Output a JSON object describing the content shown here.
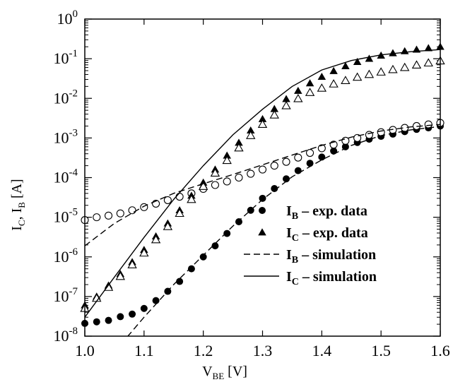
{
  "chart_data": {
    "type": "scatter",
    "xlabel": {
      "main": "V",
      "sub": "BE",
      "unit": " [V]"
    },
    "ylabel": {
      "part1": "I",
      "sub1": "C",
      "sep": ", I",
      "sub2": "B",
      "unit": " [A]"
    },
    "xlim": [
      1.0,
      1.6
    ],
    "ylim": [
      1e-08,
      1
    ],
    "yscale": "log",
    "grid": false,
    "legend_position": "lower-right",
    "x_ticks": [
      1.0,
      1.1,
      1.2,
      1.3,
      1.4,
      1.5,
      1.6
    ],
    "x_tick_labels": [
      "1.0",
      "1.1",
      "1.2",
      "1.3",
      "1.4",
      "1.5",
      "1.6"
    ],
    "y_tick_exponents": [
      "-8",
      "-7",
      "-6",
      "-5",
      "-4",
      "-3",
      "-2",
      "-1",
      "0"
    ],
    "y_tick_base": "10",
    "legend": [
      {
        "main": "I",
        "sub": "B",
        "text": " – exp. data",
        "marker": "circle-filled"
      },
      {
        "main": "I",
        "sub": "C",
        "text": " – exp. data",
        "marker": "triangle-filled"
      },
      {
        "main": "I",
        "sub": "B",
        "text": " – simulation",
        "marker": "dashed"
      },
      {
        "main": "I",
        "sub": "C",
        "text": " – simulation",
        "marker": "solid"
      }
    ],
    "series": [
      {
        "marker": "circle-filled",
        "x": [
          1.0,
          1.02,
          1.04,
          1.06,
          1.08,
          1.1,
          1.12,
          1.14,
          1.16,
          1.18,
          1.2,
          1.22,
          1.24,
          1.26,
          1.28,
          1.3,
          1.32,
          1.34,
          1.36,
          1.38,
          1.4,
          1.42,
          1.44,
          1.46,
          1.48,
          1.5,
          1.52,
          1.54,
          1.56,
          1.58,
          1.6
        ],
        "y": [
          2.1e-08,
          2.3e-08,
          2.5e-08,
          3.1e-08,
          3.6e-08,
          5e-08,
          7.9e-08,
          1.35e-07,
          2.4e-07,
          5e-07,
          1e-06,
          1.9e-06,
          3.9e-06,
          7.7e-06,
          1.5e-05,
          3e-05,
          5.3e-05,
          9.3e-05,
          0.00015,
          0.00023,
          0.00033,
          0.00047,
          0.0006,
          0.00077,
          0.00093,
          0.0011,
          0.00125,
          0.00145,
          0.00165,
          0.0018,
          0.002
        ]
      },
      {
        "marker": "circle-open",
        "x": [
          1.0,
          1.02,
          1.04,
          1.06,
          1.08,
          1.1,
          1.12,
          1.14,
          1.16,
          1.18,
          1.2,
          1.22,
          1.24,
          1.26,
          1.28,
          1.3,
          1.32,
          1.34,
          1.36,
          1.38,
          1.4,
          1.42,
          1.44,
          1.46,
          1.48,
          1.5,
          1.52,
          1.54,
          1.56,
          1.58,
          1.6
        ],
        "y": [
          8.5e-06,
          1e-05,
          1.1e-05,
          1.25e-05,
          1.5e-05,
          1.8e-05,
          2.2e-05,
          2.7e-05,
          3.3e-05,
          4e-05,
          5.2e-05,
          6.5e-05,
          8e-05,
          0.0001,
          0.000125,
          0.00016,
          0.0002,
          0.00025,
          0.00032,
          0.00042,
          0.00055,
          0.00068,
          0.00085,
          0.001,
          0.0012,
          0.0014,
          0.0016,
          0.0018,
          0.002,
          0.0022,
          0.0024
        ]
      },
      {
        "marker": "triangle-filled",
        "x": [
          1.0,
          1.02,
          1.04,
          1.06,
          1.08,
          1.1,
          1.12,
          1.14,
          1.16,
          1.18,
          1.2,
          1.22,
          1.24,
          1.26,
          1.28,
          1.3,
          1.32,
          1.34,
          1.36,
          1.38,
          1.4,
          1.42,
          1.44,
          1.46,
          1.48,
          1.5,
          1.52,
          1.54,
          1.56,
          1.58,
          1.6
        ],
        "y": [
          6e-08,
          1e-07,
          1.9e-07,
          3.7e-07,
          7.4e-07,
          1.5e-06,
          3.3e-06,
          7e-06,
          1.5e-05,
          3.5e-05,
          7.5e-05,
          0.00016,
          0.00036,
          0.00076,
          0.00155,
          0.003,
          0.0054,
          0.0096,
          0.0155,
          0.024,
          0.035,
          0.049,
          0.065,
          0.083,
          0.1,
          0.12,
          0.138,
          0.155,
          0.17,
          0.185,
          0.2
        ]
      },
      {
        "marker": "triangle-open",
        "x": [
          1.0,
          1.02,
          1.04,
          1.06,
          1.08,
          1.1,
          1.12,
          1.14,
          1.16,
          1.18,
          1.2,
          1.22,
          1.24,
          1.26,
          1.28,
          1.3,
          1.32,
          1.34,
          1.36,
          1.38,
          1.4,
          1.42,
          1.44,
          1.46,
          1.48,
          1.5,
          1.52,
          1.54,
          1.56,
          1.58,
          1.6
        ],
        "y": [
          5e-08,
          9e-08,
          1.7e-07,
          3.2e-07,
          6.3e-07,
          1.25e-06,
          2.7e-06,
          5.8e-06,
          1.25e-05,
          2.8e-05,
          6e-05,
          0.00013,
          0.00027,
          0.00056,
          0.00115,
          0.0022,
          0.0038,
          0.0065,
          0.0098,
          0.014,
          0.018,
          0.023,
          0.028,
          0.034,
          0.04,
          0.046,
          0.053,
          0.06,
          0.069,
          0.078,
          0.088
        ]
      },
      {
        "marker": "dashed",
        "x": [
          1.0,
          1.05,
          1.1,
          1.15,
          1.2,
          1.25,
          1.3,
          1.35,
          1.4,
          1.45,
          1.5,
          1.55,
          1.6
        ],
        "y": [
          1.9e-06,
          7e-06,
          1.9e-05,
          4e-05,
          7e-05,
          0.00012,
          0.00021,
          0.00037,
          0.00065,
          0.00105,
          0.0015,
          0.0019,
          0.0022
        ]
      },
      {
        "marker": "dashed",
        "x": [
          1.05,
          1.1,
          1.15,
          1.2,
          1.25,
          1.3,
          1.35,
          1.4,
          1.45,
          1.5,
          1.55,
          1.6
        ],
        "y": [
          4e-09,
          3e-08,
          2e-07,
          1.1e-06,
          6e-06,
          2.8e-05,
          0.000105,
          0.00028,
          0.00065,
          0.00115,
          0.0016,
          0.00195
        ]
      },
      {
        "marker": "solid",
        "x": [
          1.0,
          1.05,
          1.1,
          1.15,
          1.2,
          1.25,
          1.3,
          1.35,
          1.4,
          1.45,
          1.5,
          1.55,
          1.6
        ],
        "y": [
          3e-08,
          3.1e-07,
          3.1e-06,
          2.8e-05,
          0.0002,
          0.0012,
          0.0053,
          0.02,
          0.052,
          0.09,
          0.125,
          0.15,
          0.17
        ]
      }
    ]
  }
}
